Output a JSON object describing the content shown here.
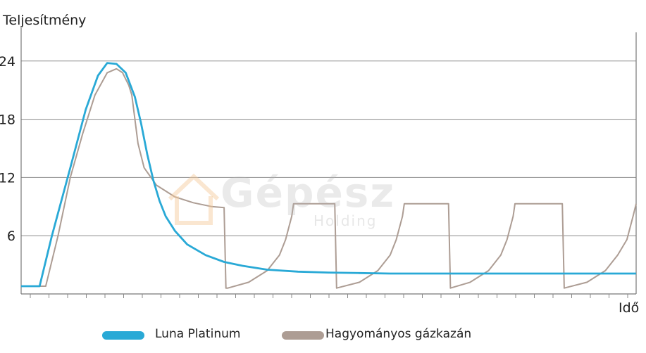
{
  "chart_data": {
    "type": "line",
    "ylabel": "Teljesítmény",
    "xlabel": "Idő",
    "yticks": [
      6,
      12,
      18,
      24
    ],
    "ylim": [
      0,
      26
    ],
    "xlim": [
      0,
      100
    ],
    "grid": "horizontal",
    "legend_position": "bottom",
    "series": [
      {
        "name": "Luna Platinum",
        "color": "#29a9d6",
        "x": [
          0,
          3,
          5,
          8,
          10.5,
          12.5,
          14,
          15.5,
          17,
          18.5,
          19.5,
          20.5,
          21.5,
          22.5,
          23.5,
          25,
          27,
          30,
          33,
          36,
          40,
          45,
          50,
          55,
          60,
          70,
          80,
          90,
          100
        ],
        "y": [
          0.8,
          0.8,
          6,
          13,
          19,
          22.5,
          23.8,
          23.7,
          22.8,
          20.3,
          17.6,
          14.4,
          11.7,
          9.6,
          8.0,
          6.5,
          5.1,
          4.0,
          3.3,
          2.9,
          2.5,
          2.3,
          2.2,
          2.15,
          2.1,
          2.1,
          2.1,
          2.1,
          2.1
        ]
      },
      {
        "name": "Hagyományos gázkazán",
        "color": "#ad9d94",
        "x": [
          0,
          4,
          6,
          8,
          10,
          12,
          14,
          15.5,
          16.5,
          17.5,
          18,
          19,
          20,
          22,
          25,
          28,
          31,
          33,
          33.3,
          33.6,
          37,
          40,
          42,
          43,
          44,
          44.3,
          51,
          51.3,
          55,
          58,
          60,
          61,
          62,
          62.3,
          69.5,
          69.8,
          73,
          76,
          78,
          79,
          80,
          80.3,
          88,
          88.3,
          92,
          95,
          97,
          98.5,
          99.5,
          100
        ],
        "y": [
          0.8,
          0.8,
          6,
          12,
          16.5,
          20.5,
          22.8,
          23.2,
          22.8,
          21.5,
          20.5,
          15.5,
          13.0,
          11.2,
          10.0,
          9.4,
          9.0,
          8.9,
          0.6,
          0.6,
          1.2,
          2.4,
          4.0,
          5.6,
          8.0,
          9.3,
          9.3,
          0.6,
          1.2,
          2.4,
          4.0,
          5.6,
          8.0,
          9.3,
          9.3,
          0.6,
          1.2,
          2.4,
          4.0,
          5.6,
          8.0,
          9.3,
          9.3,
          0.6,
          1.2,
          2.4,
          4.0,
          5.6,
          8.0,
          9.3
        ]
      }
    ]
  },
  "watermark": {
    "main": "Gépész",
    "sub": "Holding"
  }
}
